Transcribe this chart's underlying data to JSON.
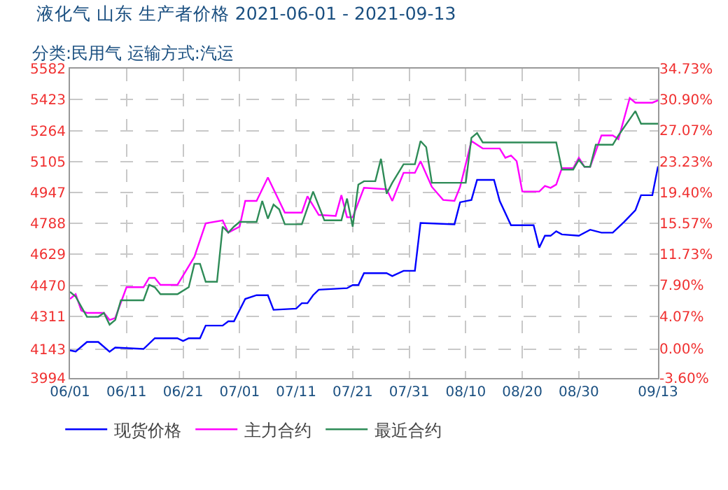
{
  "chart_data": {
    "type": "line",
    "title": "液化气 山东 生产者价格 2021-06-01 - 2021-09-13",
    "subtitle": "分类:民用气 运输方式:汽运",
    "xlim": [
      "2021-06-01",
      "2021-09-13"
    ],
    "xticks": [
      {
        "value": "2021-06-01",
        "label": "06/01"
      },
      {
        "value": "2021-06-11",
        "label": "06/11"
      },
      {
        "value": "2021-06-21",
        "label": "06/21"
      },
      {
        "value": "2021-07-01",
        "label": "07/01"
      },
      {
        "value": "2021-07-11",
        "label": "07/11"
      },
      {
        "value": "2021-07-21",
        "label": "07/21"
      },
      {
        "value": "2021-07-31",
        "label": "07/31"
      },
      {
        "value": "2021-08-10",
        "label": "08/10"
      },
      {
        "value": "2021-08-20",
        "label": "08/20"
      },
      {
        "value": "2021-08-30",
        "label": "08/30"
      },
      {
        "value": "2021-09-13",
        "label": "09/13"
      }
    ],
    "ylim": [
      3994,
      5582
    ],
    "yticks": [
      3994,
      4143,
      4311,
      4470,
      4629,
      4788,
      4947,
      5105,
      5264,
      5423,
      5582
    ],
    "y2lim": [
      -3.6,
      34.73
    ],
    "y2ticks": [
      {
        "value": -3.6,
        "label": "-3.60%"
      },
      {
        "value": 0,
        "label": "0.00%"
      },
      {
        "value": 4.07,
        "label": "4.07%"
      },
      {
        "value": 7.9,
        "label": "7.90%"
      },
      {
        "value": 11.73,
        "label": "11.73%"
      },
      {
        "value": 15.57,
        "label": "15.57%"
      },
      {
        "value": 19.4,
        "label": "19.40%"
      },
      {
        "value": 23.23,
        "label": "23.23%"
      },
      {
        "value": 27.07,
        "label": "27.07%"
      },
      {
        "value": 30.9,
        "label": "30.90%"
      },
      {
        "value": 34.73,
        "label": "34.73%"
      }
    ],
    "grid": true,
    "legend": "bottom",
    "line_style": "solid",
    "marker": "none",
    "series": [
      {
        "name": "现货价格",
        "color": "#0000ff",
        "x": [
          "2021-06-01",
          "2021-06-02",
          "2021-06-04",
          "2021-06-06",
          "2021-06-08",
          "2021-06-09",
          "2021-06-14",
          "2021-06-16",
          "2021-06-20",
          "2021-06-21",
          "2021-06-22",
          "2021-06-24",
          "2021-06-25",
          "2021-06-28",
          "2021-06-29",
          "2021-06-30",
          "2021-07-02",
          "2021-07-04",
          "2021-07-06",
          "2021-07-07",
          "2021-07-11",
          "2021-07-12",
          "2021-07-13",
          "2021-07-14",
          "2021-07-15",
          "2021-07-20",
          "2021-07-21",
          "2021-07-22",
          "2021-07-23",
          "2021-07-27",
          "2021-07-28",
          "2021-07-30",
          "2021-08-01",
          "2021-08-02",
          "2021-08-08",
          "2021-08-09",
          "2021-08-11",
          "2021-08-12",
          "2021-08-15",
          "2021-08-16",
          "2021-08-18",
          "2021-08-22",
          "2021-08-23",
          "2021-08-24",
          "2021-08-25",
          "2021-08-26",
          "2021-08-27",
          "2021-08-30",
          "2021-09-01",
          "2021-09-03",
          "2021-09-05",
          "2021-09-07",
          "2021-09-09",
          "2021-09-10",
          "2021-09-12",
          "2021-09-13"
        ],
        "values": [
          4136,
          4130,
          4179,
          4179,
          4129,
          4150,
          4143,
          4198,
          4198,
          4184,
          4198,
          4198,
          4263,
          4263,
          4285,
          4285,
          4400,
          4419,
          4419,
          4344,
          4350,
          4378,
          4378,
          4419,
          4447,
          4455,
          4471,
          4471,
          4532,
          4532,
          4517,
          4544,
          4544,
          4790,
          4783,
          4896,
          4908,
          5011,
          5011,
          4903,
          4778,
          4778,
          4663,
          4724,
          4724,
          4747,
          4731,
          4724,
          4755,
          4740,
          4740,
          4795,
          4855,
          4932,
          4932,
          5080
        ]
      },
      {
        "name": "主力合约",
        "color": "#ff00ff",
        "x": [
          "2021-06-01",
          "2021-06-02",
          "2021-06-03",
          "2021-06-04",
          "2021-06-07",
          "2021-06-08",
          "2021-06-09",
          "2021-06-11",
          "2021-06-14",
          "2021-06-15",
          "2021-06-16",
          "2021-06-17",
          "2021-06-20",
          "2021-06-23",
          "2021-06-25",
          "2021-06-28",
          "2021-06-29",
          "2021-07-01",
          "2021-07-02",
          "2021-07-04",
          "2021-07-06",
          "2021-07-09",
          "2021-07-12",
          "2021-07-13",
          "2021-07-15",
          "2021-07-18",
          "2021-07-19",
          "2021-07-20",
          "2021-07-21",
          "2021-07-23",
          "2021-07-27",
          "2021-07-28",
          "2021-07-30",
          "2021-08-01",
          "2021-08-02",
          "2021-08-04",
          "2021-08-06",
          "2021-08-08",
          "2021-08-09",
          "2021-08-11",
          "2021-08-13",
          "2021-08-16",
          "2021-08-17",
          "2021-08-18",
          "2021-08-19",
          "2021-08-20",
          "2021-08-23",
          "2021-08-24",
          "2021-08-25",
          "2021-08-26",
          "2021-08-27",
          "2021-08-29",
          "2021-08-30",
          "2021-08-31",
          "2021-09-01",
          "2021-09-03",
          "2021-09-05",
          "2021-09-06",
          "2021-09-08",
          "2021-09-09",
          "2021-09-12",
          "2021-09-13"
        ],
        "values": [
          4400,
          4424,
          4340,
          4328,
          4328,
          4292,
          4302,
          4460,
          4460,
          4508,
          4508,
          4472,
          4472,
          4616,
          4788,
          4803,
          4740,
          4771,
          4903,
          4903,
          5023,
          4843,
          4843,
          4927,
          4831,
          4826,
          4932,
          4819,
          4819,
          4970,
          4963,
          4903,
          5047,
          5047,
          5107,
          4975,
          4908,
          4903,
          4975,
          5210,
          5172,
          5172,
          5124,
          5136,
          5107,
          4951,
          4951,
          4980,
          4970,
          4987,
          5071,
          5071,
          5124,
          5078,
          5078,
          5239,
          5239,
          5220,
          5431,
          5407,
          5407,
          5419
        ]
      },
      {
        "name": "最近合约",
        "color": "#2e8b57",
        "x": [
          "2021-06-01",
          "2021-06-02",
          "2021-06-04",
          "2021-06-06",
          "2021-06-07",
          "2021-06-08",
          "2021-06-09",
          "2021-06-10",
          "2021-06-14",
          "2021-06-15",
          "2021-06-16",
          "2021-06-17",
          "2021-06-20",
          "2021-06-22",
          "2021-06-23",
          "2021-06-24",
          "2021-06-25",
          "2021-06-27",
          "2021-06-28",
          "2021-06-29",
          "2021-06-30",
          "2021-07-01",
          "2021-07-04",
          "2021-07-05",
          "2021-07-06",
          "2021-07-07",
          "2021-07-08",
          "2021-07-09",
          "2021-07-12",
          "2021-07-14",
          "2021-07-16",
          "2021-07-19",
          "2021-07-20",
          "2021-07-21",
          "2021-07-22",
          "2021-07-23",
          "2021-07-25",
          "2021-07-26",
          "2021-07-27",
          "2021-07-28",
          "2021-07-30",
          "2021-08-01",
          "2021-08-02",
          "2021-08-03",
          "2021-08-04",
          "2021-08-10",
          "2021-08-11",
          "2021-08-12",
          "2021-08-13",
          "2021-08-26",
          "2021-08-27",
          "2021-08-29",
          "2021-08-30",
          "2021-08-31",
          "2021-09-01",
          "2021-09-02",
          "2021-09-05",
          "2021-09-06",
          "2021-09-09",
          "2021-09-10",
          "2021-09-13"
        ],
        "values": [
          4436,
          4412,
          4308,
          4308,
          4328,
          4268,
          4292,
          4393,
          4393,
          4472,
          4460,
          4424,
          4424,
          4460,
          4580,
          4580,
          4488,
          4488,
          4771,
          4740,
          4771,
          4795,
          4795,
          4903,
          4812,
          4884,
          4860,
          4783,
          4783,
          4951,
          4803,
          4803,
          4915,
          4771,
          4987,
          5004,
          5004,
          5119,
          4940,
          4996,
          5091,
          5091,
          5210,
          5179,
          4996,
          4996,
          5227,
          5251,
          5203,
          5203,
          5064,
          5064,
          5114,
          5078,
          5078,
          5191,
          5191,
          5239,
          5364,
          5299,
          5299
        ]
      }
    ]
  }
}
